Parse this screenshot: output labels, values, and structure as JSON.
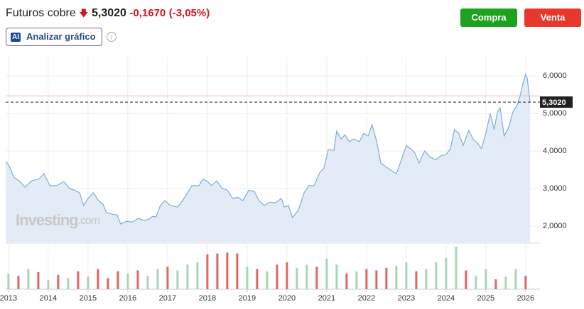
{
  "header": {
    "title": "Futuros cobre",
    "price": "5,3020",
    "change": "-0,1670",
    "change_pct": "(-3,05%)"
  },
  "buttons": {
    "buy": "Compra",
    "sell": "Venta"
  },
  "analyze": {
    "badge": "AI",
    "label": "Analizar gráfico"
  },
  "watermark": {
    "brand": "Investing",
    "suffix": ".com"
  },
  "chart_data": {
    "type": "area",
    "x": [
      2012.93,
      2013.0,
      2013.14,
      2013.29,
      2013.41,
      2013.59,
      2013.77,
      2013.89,
      2014.04,
      2014.21,
      2014.39,
      2014.54,
      2014.66,
      2014.79,
      2014.89,
      2015.0,
      2015.14,
      2015.25,
      2015.38,
      2015.46,
      2015.61,
      2015.73,
      2015.82,
      2015.96,
      2016.11,
      2016.27,
      2016.41,
      2016.54,
      2016.61,
      2016.71,
      2016.82,
      2016.93,
      2017.07,
      2017.25,
      2017.39,
      2017.52,
      2017.61,
      2017.7,
      2017.79,
      2017.89,
      2018.0,
      2018.11,
      2018.23,
      2018.36,
      2018.5,
      2018.64,
      2018.77,
      2018.89,
      2019.04,
      2019.18,
      2019.3,
      2019.43,
      2019.57,
      2019.71,
      2019.86,
      2019.93,
      2020.04,
      2020.14,
      2020.29,
      2020.43,
      2020.55,
      2020.68,
      2020.82,
      2020.93,
      2021.04,
      2021.18,
      2021.25,
      2021.36,
      2021.46,
      2021.57,
      2021.68,
      2021.82,
      2021.93,
      2022.04,
      2022.14,
      2022.25,
      2022.36,
      2022.5,
      2022.61,
      2022.75,
      2022.86,
      2023.0,
      2023.11,
      2023.21,
      2023.32,
      2023.46,
      2023.61,
      2023.75,
      2023.86,
      2024.0,
      2024.11,
      2024.21,
      2024.32,
      2024.43,
      2024.57,
      2024.68,
      2024.79,
      2024.89,
      2025.0,
      2025.11,
      2025.21,
      2025.29,
      2025.36,
      2025.46,
      2025.57,
      2025.68,
      2025.79,
      2025.86,
      2025.93,
      2026.0,
      2026.04,
      2026.11
    ],
    "values": [
      3.72,
      3.64,
      3.3,
      3.19,
      3.04,
      3.21,
      3.26,
      3.4,
      3.08,
      3.08,
      3.19,
      3.0,
      2.96,
      2.89,
      2.55,
      2.74,
      2.89,
      2.7,
      2.58,
      2.36,
      2.32,
      2.3,
      2.06,
      2.13,
      2.11,
      2.21,
      2.15,
      2.19,
      2.26,
      2.25,
      2.55,
      2.68,
      2.55,
      2.51,
      2.7,
      2.92,
      3.08,
      3.08,
      3.08,
      3.26,
      3.19,
      3.08,
      3.21,
      3.02,
      2.96,
      2.74,
      2.77,
      2.68,
      2.96,
      2.92,
      2.68,
      2.55,
      2.64,
      2.62,
      2.74,
      2.51,
      2.55,
      2.23,
      2.43,
      2.89,
      3.08,
      3.08,
      3.42,
      3.55,
      4.04,
      4.02,
      4.53,
      4.32,
      4.43,
      4.25,
      4.32,
      4.25,
      4.47,
      4.4,
      4.7,
      4.28,
      3.68,
      3.57,
      3.49,
      3.4,
      3.72,
      4.15,
      4.06,
      3.96,
      3.68,
      4.0,
      3.83,
      3.77,
      3.87,
      3.91,
      4.06,
      4.57,
      4.47,
      4.15,
      4.55,
      4.32,
      4.21,
      4.06,
      4.47,
      5.0,
      4.57,
      5.04,
      5.15,
      4.4,
      4.62,
      5.04,
      5.23,
      5.47,
      5.79,
      6.04,
      5.94,
      5.302
    ],
    "color": "#7eaed8",
    "fill": "#e3ecf6",
    "xlim": [
      2012.93,
      2026.36
    ],
    "ylim": [
      1.57,
      6.51
    ],
    "xticks": [
      2013,
      2014,
      2015,
      2016,
      2017,
      2018,
      2019,
      2020,
      2021,
      2022,
      2023,
      2024,
      2025,
      2026
    ],
    "yticks": [
      {
        "value": 2,
        "label": "2,0000"
      },
      {
        "value": 3,
        "label": "3,0000"
      },
      {
        "value": 4,
        "label": "4,0000"
      },
      {
        "value": 5,
        "label": "5,0000"
      },
      {
        "value": 6,
        "label": "6,0000"
      }
    ],
    "grid": true,
    "last_price": {
      "value": 5.302,
      "label": "5,3020"
    },
    "prev_close": 5.469,
    "volume": {
      "x": [
        2013.0,
        2013.25,
        2013.5,
        2013.75,
        2014.0,
        2014.25,
        2014.5,
        2014.75,
        2015.0,
        2015.25,
        2015.5,
        2015.75,
        2016.0,
        2016.25,
        2016.5,
        2016.75,
        2017.0,
        2017.25,
        2017.5,
        2017.75,
        2018.0,
        2018.25,
        2018.5,
        2018.75,
        2019.0,
        2019.25,
        2019.5,
        2019.75,
        2020.0,
        2020.25,
        2020.5,
        2020.75,
        2021.0,
        2021.25,
        2021.5,
        2021.75,
        2022.0,
        2022.25,
        2022.5,
        2022.75,
        2023.0,
        2023.25,
        2023.5,
        2023.75,
        2024.0,
        2024.25,
        2024.5,
        2024.75,
        2025.0,
        2025.25,
        2025.5,
        2025.75,
        2026.0
      ],
      "values": [
        35,
        30,
        45,
        38,
        20,
        32,
        25,
        40,
        28,
        45,
        25,
        40,
        35,
        42,
        30,
        45,
        50,
        42,
        55,
        60,
        78,
        80,
        82,
        80,
        50,
        45,
        40,
        55,
        60,
        48,
        55,
        50,
        68,
        55,
        35,
        40,
        45,
        42,
        48,
        52,
        60,
        40,
        45,
        60,
        70,
        95,
        42,
        30,
        45,
        22,
        28,
        45,
        30
      ],
      "direction": [
        "up",
        "down",
        "up",
        "down",
        "up",
        "down",
        "up",
        "down",
        "up",
        "down",
        "down",
        "down",
        "up",
        "down",
        "up",
        "up",
        "down",
        "up",
        "up",
        "up",
        "down",
        "down",
        "down",
        "down",
        "up",
        "down",
        "up",
        "down",
        "down",
        "up",
        "up",
        "down",
        "up",
        "up",
        "down",
        "up",
        "down",
        "down",
        "down",
        "up",
        "up",
        "down",
        "up",
        "up",
        "up",
        "up",
        "down",
        "up",
        "up",
        "down",
        "up",
        "up",
        "down"
      ],
      "colors": {
        "up": "#a8d5b5",
        "down": "#e06666"
      },
      "ylim": [
        0,
        100
      ]
    }
  }
}
